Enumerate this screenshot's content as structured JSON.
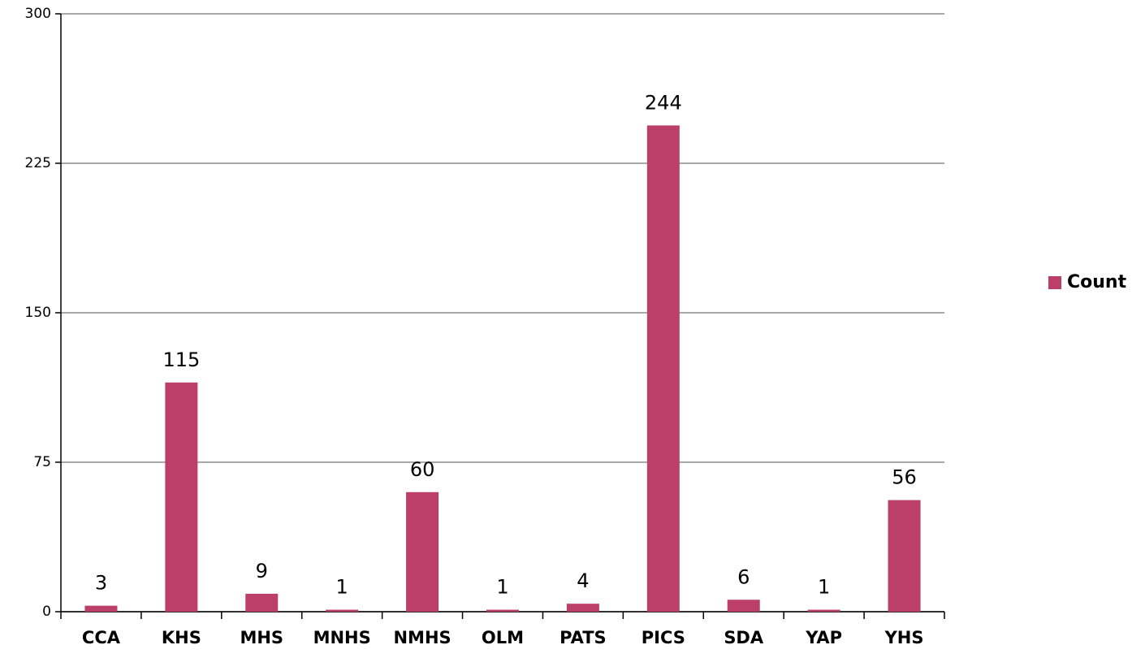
{
  "chart_data": {
    "type": "bar",
    "categories": [
      "CCA",
      "KHS",
      "MHS",
      "MNHS",
      "NMHS",
      "OLM",
      "PATS",
      "PICS",
      "SDA",
      "YAP",
      "YHS"
    ],
    "series": [
      {
        "name": "Count",
        "color": "#bb3f69",
        "values": [
          3,
          115,
          9,
          1,
          60,
          1,
          4,
          244,
          6,
          1,
          56
        ]
      }
    ],
    "ylim": [
      0,
      300
    ],
    "yticks": [
      0,
      75,
      150,
      225,
      300
    ],
    "grid": true,
    "legend": "right",
    "data_labels": true
  }
}
